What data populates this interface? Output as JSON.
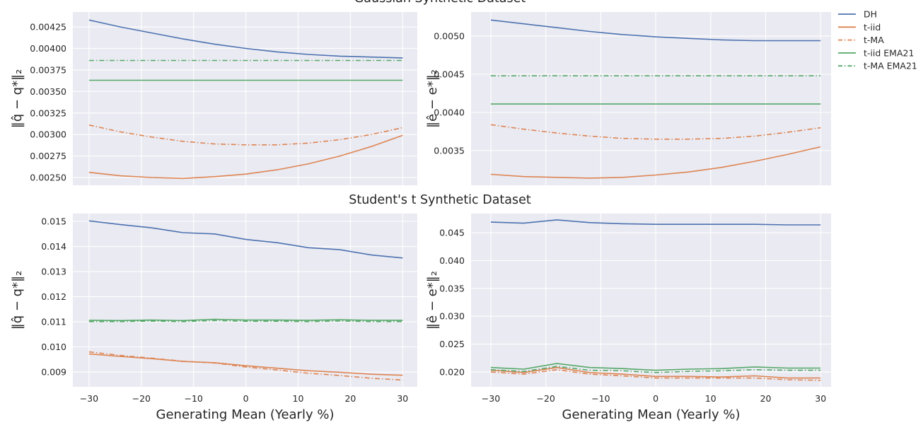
{
  "chart_data": [
    {
      "type": "line",
      "title": "Gaussian Synthetic Dataset",
      "xlabel": "",
      "ylabel": "‖q̂ − q*‖₂",
      "x": [
        -30,
        -24,
        -18,
        -12,
        -6,
        0,
        6,
        12,
        18,
        24,
        30
      ],
      "xticks": [
        -30,
        -20,
        -10,
        0,
        10,
        20,
        30
      ],
      "xtick_labels": [
        "",
        "",
        "",
        "",
        "",
        "",
        ""
      ],
      "xlim": [
        -33.1,
        32.8
      ],
      "ylim": [
        0.00241,
        0.004423
      ],
      "yticks": [
        0.0025,
        0.00275,
        0.003,
        0.00325,
        0.0035,
        0.00375,
        0.004,
        0.00425
      ],
      "ytick_labels": [
        "0.00250",
        "0.00275",
        "0.00300",
        "0.00325",
        "0.00350",
        "0.00375",
        "0.00400",
        "0.00425"
      ],
      "grid": true,
      "series": [
        {
          "name": "DH",
          "style": "solid",
          "color": "#4c72b0",
          "values": [
            0.00433,
            0.00425,
            0.00418,
            0.00411,
            0.00405,
            0.004,
            0.00396,
            0.00393,
            0.00391,
            0.0039,
            0.00389
          ]
        },
        {
          "name": "t-iid",
          "style": "solid",
          "color": "#dd8452",
          "values": [
            0.00256,
            0.00252,
            0.0025,
            0.00249,
            0.00251,
            0.00254,
            0.00259,
            0.00266,
            0.00275,
            0.00286,
            0.00299
          ]
        },
        {
          "name": "t-MA",
          "style": "dashdot",
          "color": "#dd8452",
          "values": [
            0.00311,
            0.00303,
            0.00297,
            0.00292,
            0.00289,
            0.00288,
            0.00288,
            0.0029,
            0.00294,
            0.003,
            0.00308
          ]
        },
        {
          "name": "t-iid EMA21",
          "style": "solid",
          "color": "#55a868",
          "values": [
            0.00363,
            0.00363,
            0.00363,
            0.00363,
            0.00363,
            0.00363,
            0.00363,
            0.00363,
            0.00363,
            0.00363,
            0.00363
          ]
        },
        {
          "name": "t-MA EMA21",
          "style": "dashdot",
          "color": "#55a868",
          "values": [
            0.00386,
            0.00386,
            0.00386,
            0.00386,
            0.00386,
            0.00386,
            0.00386,
            0.00386,
            0.00386,
            0.00386,
            0.00386
          ]
        }
      ]
    },
    {
      "type": "line",
      "title": "",
      "xlabel": "",
      "ylabel": "‖ê − e*‖₂",
      "x": [
        -30,
        -24,
        -18,
        -12,
        -6,
        0,
        6,
        12,
        18,
        24,
        30
      ],
      "xticks": [
        -30,
        -20,
        -10,
        0,
        10,
        20,
        30
      ],
      "xtick_labels": [
        "",
        "",
        "",
        "",
        "",
        "",
        ""
      ],
      "xlim": [
        -33.6,
        31.9
      ],
      "ylim": [
        0.003046,
        0.005315
      ],
      "yticks": [
        0.0035,
        0.004,
        0.0045,
        0.005
      ],
      "ytick_labels": [
        "0.0035",
        "0.0040",
        "0.0045",
        "0.0050"
      ],
      "grid": true,
      "series": [
        {
          "name": "DH",
          "style": "solid",
          "color": "#4c72b0",
          "values": [
            0.00521,
            0.00516,
            0.00511,
            0.00506,
            0.00502,
            0.00499,
            0.00497,
            0.00495,
            0.00494,
            0.00494,
            0.00494
          ]
        },
        {
          "name": "t-iid",
          "style": "solid",
          "color": "#dd8452",
          "values": [
            0.00319,
            0.00316,
            0.00315,
            0.00314,
            0.00315,
            0.00318,
            0.00322,
            0.00328,
            0.00336,
            0.00345,
            0.00355
          ]
        },
        {
          "name": "t-MA",
          "style": "dashdot",
          "color": "#dd8452",
          "values": [
            0.00384,
            0.00378,
            0.00373,
            0.00369,
            0.00366,
            0.00365,
            0.00365,
            0.00366,
            0.00369,
            0.00374,
            0.0038
          ]
        },
        {
          "name": "t-iid EMA21",
          "style": "solid",
          "color": "#55a868",
          "values": [
            0.00411,
            0.00411,
            0.00411,
            0.00411,
            0.00411,
            0.00411,
            0.00411,
            0.00411,
            0.00411,
            0.00411,
            0.00411
          ]
        },
        {
          "name": "t-MA EMA21",
          "style": "dashdot",
          "color": "#55a868",
          "values": [
            0.00448,
            0.00448,
            0.00448,
            0.00448,
            0.00448,
            0.00448,
            0.00448,
            0.00448,
            0.00448,
            0.00448,
            0.00448
          ]
        }
      ]
    },
    {
      "type": "line",
      "title": "Student's t Synthetic Dataset",
      "xlabel": "Generating Mean (Yearly %)",
      "ylabel": "‖q̂ − q*‖₂",
      "x": [
        -30,
        -24,
        -18,
        -12,
        -6,
        0,
        6,
        12,
        18,
        24,
        30
      ],
      "xticks": [
        -30,
        -20,
        -10,
        0,
        10,
        20,
        30
      ],
      "xtick_labels": [
        "−30",
        "−20",
        "−10",
        "0",
        "10",
        "20",
        "30"
      ],
      "xlim": [
        -33.1,
        32.8
      ],
      "ylim": [
        0.00841,
        0.01531
      ],
      "yticks": [
        0.009,
        0.01,
        0.011,
        0.012,
        0.013,
        0.014,
        0.015
      ],
      "ytick_labels": [
        "0.009",
        "0.010",
        "0.011",
        "0.012",
        "0.013",
        "0.014",
        "0.015"
      ],
      "grid": true,
      "series": [
        {
          "name": "DH",
          "style": "solid",
          "color": "#4c72b0",
          "values": [
            0.01502,
            0.01487,
            0.01474,
            0.01455,
            0.0145,
            0.01428,
            0.01415,
            0.01395,
            0.01387,
            0.01366,
            0.01354
          ]
        },
        {
          "name": "t-iid",
          "style": "solid",
          "color": "#dd8452",
          "values": [
            0.00972,
            0.00962,
            0.00953,
            0.00942,
            0.00937,
            0.00925,
            0.00915,
            0.00905,
            0.00899,
            0.00891,
            0.00887
          ]
        },
        {
          "name": "t-MA",
          "style": "dashdot",
          "color": "#dd8452",
          "values": [
            0.0098,
            0.00966,
            0.00955,
            0.00943,
            0.00936,
            0.0092,
            0.00908,
            0.00895,
            0.00886,
            0.00875,
            0.00868
          ]
        },
        {
          "name": "t-iid EMA21",
          "style": "solid",
          "color": "#55a868",
          "values": [
            0.01106,
            0.01105,
            0.01107,
            0.01105,
            0.0111,
            0.01107,
            0.01107,
            0.01106,
            0.01108,
            0.01106,
            0.01106
          ]
        },
        {
          "name": "t-MA EMA21",
          "style": "dashdot",
          "color": "#55a868",
          "values": [
            0.01101,
            0.01101,
            0.01103,
            0.01101,
            0.01105,
            0.01102,
            0.01102,
            0.01101,
            0.01103,
            0.01101,
            0.01101
          ]
        }
      ]
    },
    {
      "type": "line",
      "title": "",
      "xlabel": "Generating Mean (Yearly %)",
      "ylabel": "‖ê − e*‖₂",
      "x": [
        -30,
        -24,
        -18,
        -12,
        -6,
        0,
        6,
        12,
        18,
        24,
        30
      ],
      "xticks": [
        -30,
        -20,
        -10,
        0,
        10,
        20,
        30
      ],
      "xtick_labels": [
        "−30",
        "−20",
        "−10",
        "0",
        "10",
        "20",
        "30"
      ],
      "xlim": [
        -33.6,
        31.9
      ],
      "ylim": [
        0.01733,
        0.04843
      ],
      "yticks": [
        0.02,
        0.025,
        0.03,
        0.035,
        0.04,
        0.045
      ],
      "ytick_labels": [
        "0.020",
        "0.025",
        "0.030",
        "0.035",
        "0.040",
        "0.045"
      ],
      "grid": true,
      "series": [
        {
          "name": "DH",
          "style": "solid",
          "color": "#4c72b0",
          "values": [
            0.0469,
            0.0467,
            0.0473,
            0.0468,
            0.0466,
            0.0465,
            0.0465,
            0.0465,
            0.0465,
            0.0464,
            0.0464
          ]
        },
        {
          "name": "t-iid",
          "style": "solid",
          "color": "#dd8452",
          "values": [
            0.0203,
            0.0199,
            0.0208,
            0.0199,
            0.0196,
            0.0192,
            0.0192,
            0.0191,
            0.0193,
            0.0189,
            0.0189
          ]
        },
        {
          "name": "t-MA",
          "style": "dashdot",
          "color": "#dd8452",
          "values": [
            0.02,
            0.0196,
            0.0204,
            0.0196,
            0.0193,
            0.0189,
            0.0189,
            0.0189,
            0.0189,
            0.0186,
            0.0185
          ]
        },
        {
          "name": "t-iid EMA21",
          "style": "solid",
          "color": "#55a868",
          "values": [
            0.0208,
            0.0205,
            0.0215,
            0.0208,
            0.0206,
            0.0203,
            0.0205,
            0.0206,
            0.0209,
            0.0207,
            0.0207
          ]
        },
        {
          "name": "t-MA EMA21",
          "style": "dashdot",
          "color": "#55a868",
          "values": [
            0.0204,
            0.0201,
            0.021,
            0.0203,
            0.0202,
            0.0199,
            0.0201,
            0.0202,
            0.0204,
            0.0203,
            0.0203
          ]
        }
      ]
    }
  ],
  "legend": {
    "placement": "outside-right-top",
    "entries": [
      {
        "label": "DH",
        "color": "#4c72b0",
        "style": "solid"
      },
      {
        "label": "t-iid",
        "color": "#dd8452",
        "style": "solid"
      },
      {
        "label": "t-MA",
        "color": "#dd8452",
        "style": "dashdot"
      },
      {
        "label": "t-iid EMA21",
        "color": "#55a868",
        "style": "solid"
      },
      {
        "label": "t-MA EMA21",
        "color": "#55a868",
        "style": "dashdot"
      }
    ]
  }
}
